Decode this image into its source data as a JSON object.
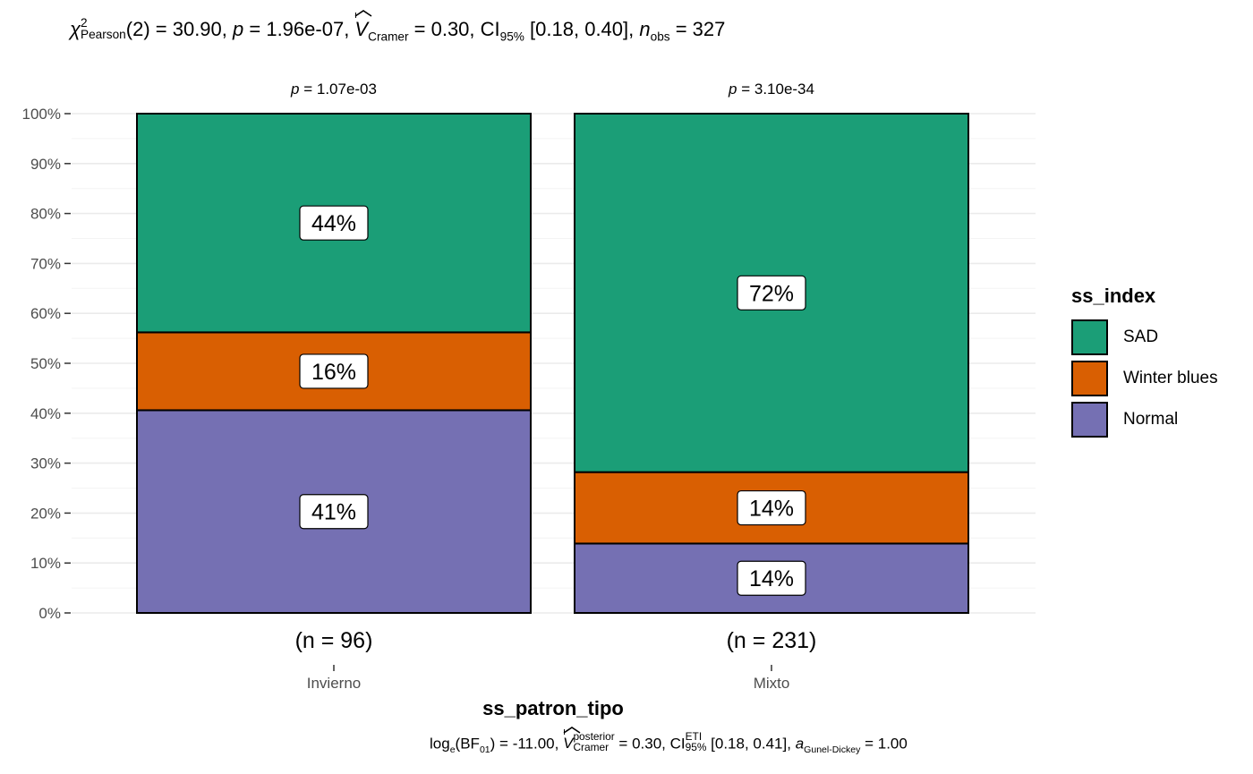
{
  "title": {
    "chi": "χ",
    "chi_sup": "2",
    "chi_sub": "Pearson",
    "df": "(2) = 30.90, ",
    "p_label": "p",
    "p_value": " = 1.96e-07, ",
    "v_label": "V",
    "v_sub": "Cramer",
    "v_value": " = 0.30, CI",
    "ci_sub": "95%",
    "ci_value": " [0.18, 0.40], ",
    "n_label": "n",
    "n_sub": "obs",
    "n_value": " = 327"
  },
  "caption": {
    "log": "log",
    "log_sub": "e",
    "bf_open": "(BF",
    "bf_sub": "01",
    "bf_value": ") = -11.00, ",
    "v_label": "V",
    "v_sup": "posterior",
    "v_sub": "Cramer",
    "v_value": " = 0.30, CI",
    "ci_sup": "ETI",
    "ci_sub": "95%",
    "ci_value": " [0.18, 0.41], ",
    "a_label": "a",
    "a_sub": "Gunel-Dickey",
    "a_value": " = 1.00"
  },
  "legend": {
    "title": "ss_index",
    "items": [
      {
        "label": "SAD",
        "color": "#1b9e77"
      },
      {
        "label": "Winter blues",
        "color": "#d95f02"
      },
      {
        "label": "Normal",
        "color": "#7570b3"
      }
    ]
  },
  "chart_data": {
    "type": "bar",
    "stacked": true,
    "percent": true,
    "xlabel": "ss_patron_tipo",
    "ylabel": "",
    "ylim": [
      0,
      100
    ],
    "yticks": [
      "0%",
      "10%",
      "20%",
      "30%",
      "40%",
      "50%",
      "60%",
      "70%",
      "80%",
      "90%",
      "100%"
    ],
    "categories": [
      "Invierno",
      "Mixto"
    ],
    "counts_labels": [
      "(n = 96)",
      "(n = 231)"
    ],
    "p_labels": [
      "1.07e-03",
      "3.10e-34"
    ],
    "p_prefix": "p",
    "series": [
      {
        "name": "Normal",
        "color": "#7570b3",
        "values": [
          40.6,
          13.9
        ],
        "labels": [
          "41%",
          "14%"
        ]
      },
      {
        "name": "Winter blues",
        "color": "#d95f02",
        "values": [
          15.6,
          14.3
        ],
        "labels": [
          "16%",
          "14%"
        ]
      },
      {
        "name": "SAD",
        "color": "#1b9e77",
        "values": [
          43.8,
          71.8
        ],
        "labels": [
          "44%",
          "72%"
        ]
      }
    ],
    "grid": true,
    "legend_position": "right"
  }
}
